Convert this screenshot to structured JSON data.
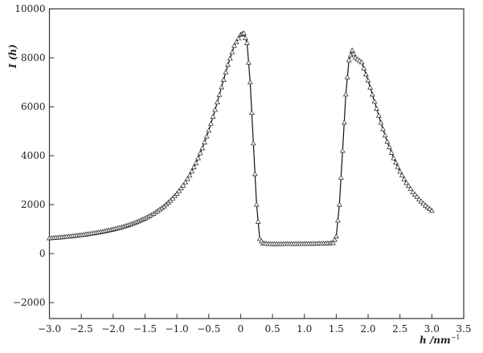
{
  "chart_data": {
    "type": "line",
    "title": "",
    "xlabel": "h /nm",
    "xlabel_superscript": "−1",
    "ylabel": "I (h)",
    "xlim": [
      -3.0,
      3.5
    ],
    "ylim": [
      -2650,
      10000
    ],
    "xticks": [
      "−3.0",
      "−2.5",
      "−2.0",
      "−1.5",
      "−1.0",
      "−0.5",
      "0",
      "0.5",
      "1.0",
      "1.5",
      "2.0",
      "2.5",
      "3.0",
      "3.5"
    ],
    "xtick_values": [
      -3.0,
      -2.5,
      -2.0,
      -1.5,
      -1.0,
      -0.5,
      0,
      0.5,
      1.0,
      1.5,
      2.0,
      2.5,
      3.0,
      3.5
    ],
    "yticks": [
      "10000",
      "8000",
      "6000",
      "4000",
      "2000",
      "0",
      "−2000"
    ],
    "ytick_values": [
      10000,
      8000,
      6000,
      4000,
      2000,
      0,
      -2000
    ],
    "grid": false,
    "line_color": "#111111",
    "marker": "triangle-open",
    "series": [
      {
        "x": [
          -3.0,
          -2.9,
          -2.8,
          -2.7,
          -2.6,
          -2.5,
          -2.4,
          -2.3,
          -2.2,
          -2.1,
          -2.0,
          -1.9,
          -1.8,
          -1.7,
          -1.6,
          -1.5,
          -1.4,
          -1.3,
          -1.2,
          -1.1,
          -1.0,
          -0.9,
          -0.8,
          -0.7,
          -0.6,
          -0.5,
          -0.4,
          -0.3,
          -0.2,
          -0.1,
          0.0,
          0.05,
          0.1,
          0.15,
          0.2,
          0.25,
          0.3,
          0.35,
          0.4,
          0.5,
          0.6,
          0.7,
          0.8,
          0.9,
          1.0,
          1.1,
          1.2,
          1.3,
          1.4,
          1.45,
          1.5,
          1.55,
          1.6,
          1.65,
          1.7,
          1.75,
          1.8,
          1.9,
          2.0,
          2.1,
          2.2,
          2.3,
          2.4,
          2.5,
          2.6,
          2.7,
          2.8,
          2.9,
          3.0
        ],
        "y": [
          625,
          645,
          669,
          695,
          724,
          756,
          792,
          833,
          878,
          930,
          987,
          1051,
          1126,
          1215,
          1316,
          1434,
          1572,
          1736,
          1929,
          2163,
          2443,
          2779,
          3190,
          3695,
          4302,
          5028,
          5868,
          6793,
          7711,
          8488,
          8940,
          9000,
          8600,
          7000,
          4500,
          2000,
          600,
          420,
          400,
          390,
          390,
          395,
          395,
          400,
          400,
          400,
          405,
          410,
          420,
          430,
          700,
          2000,
          4200,
          6500,
          7900,
          8300,
          8000,
          7812,
          7074,
          6208,
          5344,
          4567,
          3900,
          3345,
          2889,
          2516,
          2210,
          1958,
          1749
        ]
      }
    ]
  }
}
